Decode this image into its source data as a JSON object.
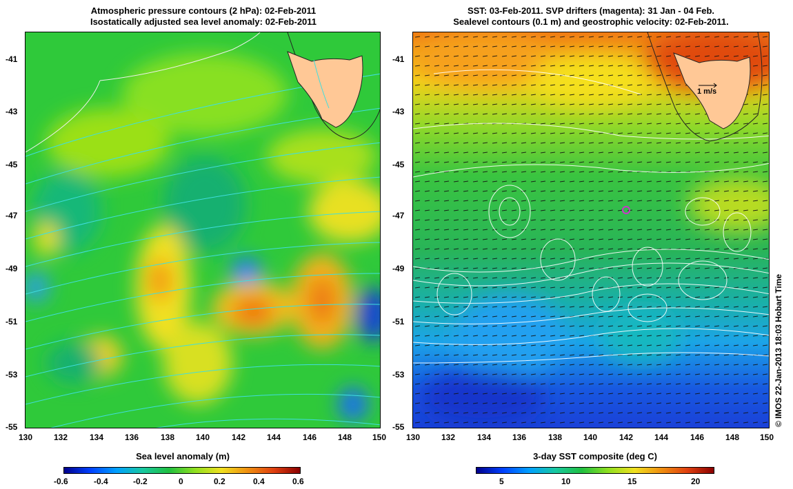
{
  "left_panel": {
    "title_line1": "Atmospheric pressure contours (2 hPa): 02-Feb-2011",
    "title_line2": "Isostatically adjusted sea level anomaly: 02-Feb-2011",
    "colorbar_title": "Sea level anomaly (m)",
    "colorbar_ticks": [
      "-0.6",
      "-0.4",
      "-0.2",
      "0",
      "0.2",
      "0.4",
      "0.6"
    ],
    "colors": {
      "ocean_mid": "#33cc33",
      "high": "#ff8800",
      "low": "#1a66ff",
      "land": "#ffc896",
      "contour": "#44dddd"
    }
  },
  "right_panel": {
    "title_line1": "SST: 03-Feb-2011. SVP drifters (magenta): 31 Jan - 04 Feb.",
    "title_line2": "Sealevel contours (0.1 m) and geostrophic velocity: 02-Feb-2011.",
    "colorbar_title": "3-day SST composite (deg C)",
    "colorbar_ticks": [
      "5",
      "10",
      "15",
      "20"
    ],
    "velocity_scale_label": "1 m/s",
    "colors": {
      "warm": "#ff6600",
      "cool": "#1a3cff",
      "land": "#ffc896",
      "drifter": "#cc33cc"
    }
  },
  "axes": {
    "lat_ticks": [
      "-41",
      "-43",
      "-45",
      "-47",
      "-49",
      "-51",
      "-53",
      "-55"
    ],
    "lon_ticks": [
      "130",
      "132",
      "134",
      "136",
      "138",
      "140",
      "142",
      "144",
      "146",
      "148",
      "150"
    ]
  },
  "credit": "© IMOS 22-Jan-2013 18:03 Hobart Time"
}
